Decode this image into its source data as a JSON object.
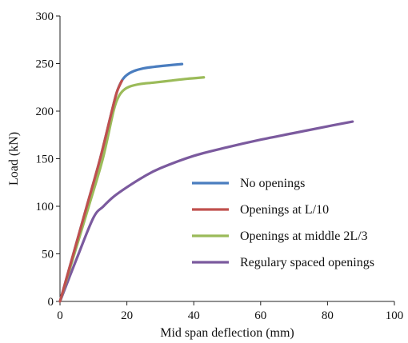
{
  "chart_data": {
    "type": "line",
    "title": "",
    "xlabel": "Mid span deflection (mm)",
    "ylabel": "Load (kN)",
    "xlim": [
      0,
      100
    ],
    "ylim": [
      0,
      300
    ],
    "x_ticks": [
      0,
      20,
      40,
      60,
      80,
      100
    ],
    "y_ticks": [
      0,
      50,
      100,
      150,
      200,
      250,
      300
    ],
    "grid": false,
    "legend_position": "center-right",
    "series": [
      {
        "name": "No openings",
        "color": "#4a7dbf",
        "points": [
          [
            0,
            0
          ],
          [
            4,
            50
          ],
          [
            8,
            100
          ],
          [
            12,
            150
          ],
          [
            15.5,
            200
          ],
          [
            17,
            220
          ],
          [
            18.5,
            232
          ],
          [
            20,
            238
          ],
          [
            22,
            242
          ],
          [
            25,
            245
          ],
          [
            28,
            246.5
          ],
          [
            32,
            248
          ],
          [
            36.5,
            249.5
          ]
        ]
      },
      {
        "name": "Openings at L/10",
        "color": "#c0504d",
        "points": [
          [
            0,
            0
          ],
          [
            4,
            50
          ],
          [
            8,
            100
          ],
          [
            12,
            150
          ],
          [
            15.5,
            200
          ],
          [
            17,
            220
          ],
          [
            18.5,
            232
          ]
        ]
      },
      {
        "name": "Openings at middle 2L/3",
        "color": "#9bbb59",
        "points": [
          [
            0,
            0
          ],
          [
            4.3,
            50
          ],
          [
            8.6,
            100
          ],
          [
            12.8,
            150
          ],
          [
            16,
            200
          ],
          [
            17.5,
            215
          ],
          [
            19,
            222
          ],
          [
            21,
            226
          ],
          [
            24,
            228.5
          ],
          [
            28,
            230
          ],
          [
            33,
            232
          ],
          [
            38,
            234
          ],
          [
            43,
            235.5
          ]
        ]
      },
      {
        "name": "Regulary spaced openings",
        "color": "#7b5a9e",
        "points": [
          [
            0,
            0
          ],
          [
            5,
            45
          ],
          [
            10,
            88
          ],
          [
            13,
            100
          ],
          [
            16,
            110
          ],
          [
            20,
            120
          ],
          [
            25,
            131
          ],
          [
            30,
            140
          ],
          [
            40,
            153
          ],
          [
            50,
            162
          ],
          [
            60,
            170
          ],
          [
            70,
            177
          ],
          [
            80,
            184
          ],
          [
            87.5,
            189
          ]
        ]
      }
    ]
  }
}
